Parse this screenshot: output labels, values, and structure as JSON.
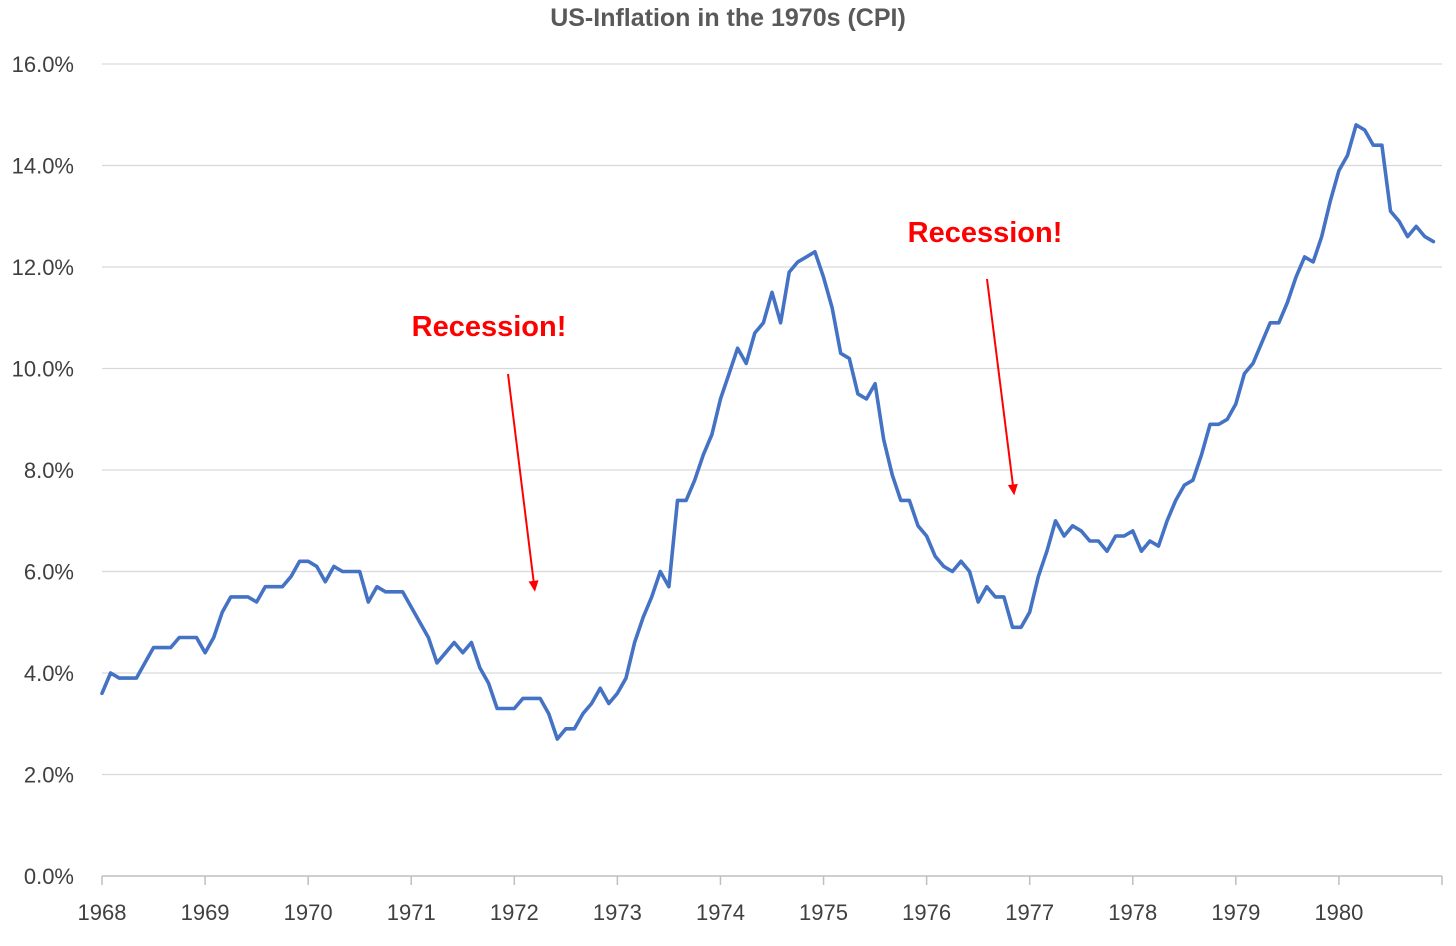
{
  "chart_data": {
    "type": "line",
    "title": "US-Inflation in the 1970s (CPI)",
    "xlabel": "",
    "ylabel": "",
    "xlim": [
      1968,
      1981
    ],
    "ylim": [
      0,
      16
    ],
    "x_ticks": [
      "1968",
      "1969",
      "1970",
      "1971",
      "1972",
      "1973",
      "1974",
      "1975",
      "1976",
      "1977",
      "1978",
      "1979",
      "1980"
    ],
    "y_ticks": [
      "0.0%",
      "2.0%",
      "4.0%",
      "6.0%",
      "8.0%",
      "10.0%",
      "12.0%",
      "14.0%",
      "16.0%"
    ],
    "grid": true,
    "legend": "none",
    "series": [
      {
        "color": "#4472c4",
        "x_start": 1968,
        "frequency": "monthly",
        "values": [
          3.6,
          4.0,
          3.9,
          3.9,
          3.9,
          4.2,
          4.5,
          4.5,
          4.5,
          4.7,
          4.7,
          4.7,
          4.4,
          4.7,
          5.2,
          5.5,
          5.5,
          5.5,
          5.4,
          5.7,
          5.7,
          5.7,
          5.9,
          6.2,
          6.2,
          6.1,
          5.8,
          6.1,
          6.0,
          6.0,
          6.0,
          5.4,
          5.7,
          5.6,
          5.6,
          5.6,
          5.3,
          5.0,
          4.7,
          4.2,
          4.4,
          4.6,
          4.4,
          4.6,
          4.1,
          3.8,
          3.3,
          3.3,
          3.3,
          3.5,
          3.5,
          3.5,
          3.2,
          2.7,
          2.9,
          2.9,
          3.2,
          3.4,
          3.7,
          3.4,
          3.6,
          3.9,
          4.6,
          5.1,
          5.5,
          6.0,
          5.7,
          7.4,
          7.4,
          7.8,
          8.3,
          8.7,
          9.4,
          9.9,
          10.4,
          10.1,
          10.7,
          10.9,
          11.5,
          10.9,
          11.9,
          12.1,
          12.2,
          12.3,
          11.8,
          11.2,
          10.3,
          10.2,
          9.5,
          9.4,
          9.7,
          8.6,
          7.9,
          7.4,
          7.4,
          6.9,
          6.7,
          6.3,
          6.1,
          6.0,
          6.2,
          6.0,
          5.4,
          5.7,
          5.5,
          5.5,
          4.9,
          4.9,
          5.2,
          5.9,
          6.4,
          7.0,
          6.7,
          6.9,
          6.8,
          6.6,
          6.6,
          6.4,
          6.7,
          6.7,
          6.8,
          6.4,
          6.6,
          6.5,
          7.0,
          7.4,
          7.7,
          7.8,
          8.3,
          8.9,
          8.9,
          9.0,
          9.3,
          9.9,
          10.1,
          10.5,
          10.9,
          10.9,
          11.3,
          11.8,
          12.2,
          12.1,
          12.6,
          13.3,
          13.9,
          14.2,
          14.8,
          14.7,
          14.4,
          14.4,
          13.1,
          12.9,
          12.6,
          12.8,
          12.6,
          12.5
        ]
      }
    ],
    "annotations": [
      {
        "text": "Recession!",
        "target_x": 1972.2,
        "target_y": 5.6
      },
      {
        "text": "Recession!",
        "target_x": 1976.85,
        "target_y": 7.5
      }
    ]
  }
}
